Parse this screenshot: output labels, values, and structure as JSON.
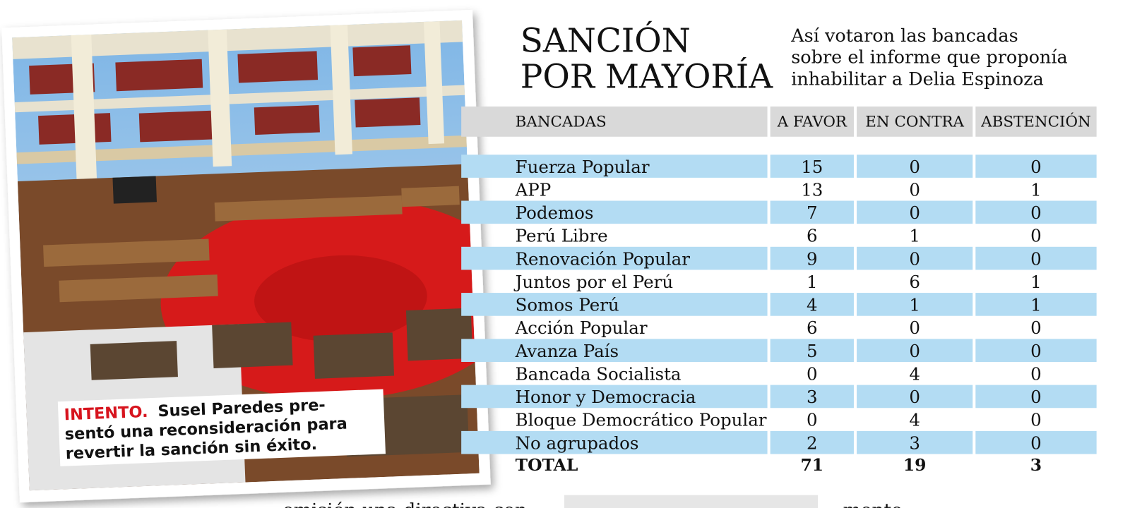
{
  "header": {
    "title_lines": [
      "SANCIÓN",
      "POR MAYORÍA"
    ],
    "subtitle_lines": [
      "Así votaron las bancadas",
      "sobre el informe que proponía",
      "inhabilitar a Delia Espinoza"
    ]
  },
  "table": {
    "columns": [
      "BANCADAS",
      "A FAVOR",
      "EN CONTRA",
      "ABSTENCIÓN"
    ],
    "rows": [
      [
        "Fuerza Popular",
        15,
        0,
        0
      ],
      [
        "APP",
        13,
        0,
        1
      ],
      [
        "Podemos",
        7,
        0,
        0
      ],
      [
        "Perú Libre",
        6,
        1,
        0
      ],
      [
        "Renovación Popular",
        9,
        0,
        0
      ],
      [
        "Juntos por el Perú",
        1,
        6,
        1
      ],
      [
        "Somos Perú",
        4,
        1,
        1
      ],
      [
        "Acción Popular",
        6,
        0,
        0
      ],
      [
        "Avanza País",
        5,
        0,
        0
      ],
      [
        "Bancada Socialista",
        0,
        4,
        0
      ],
      [
        "Honor y Democracia",
        3,
        0,
        0
      ],
      [
        "Bloque Democrático Popular",
        0,
        4,
        0
      ],
      [
        "No agrupados",
        2,
        3,
        0
      ]
    ],
    "total": [
      "TOTAL",
      71,
      19,
      3
    ]
  },
  "photo": {
    "caption_label": "INTENTO.",
    "caption_lines": [
      "Susel Paredes pre-",
      "sentó una reconsideración para",
      "revertir la sanción sin éxito."
    ]
  },
  "body_fragments": [
    "emisión una directiva con",
    "mente"
  ]
}
